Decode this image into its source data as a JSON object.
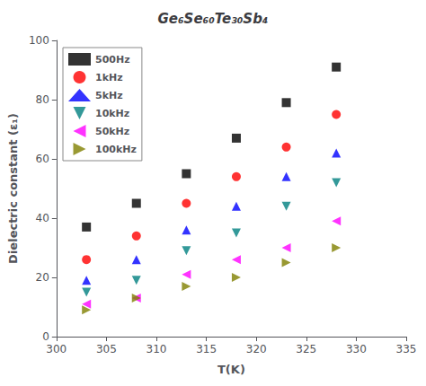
{
  "chart_data": {
    "type": "scatter",
    "title": "Ge₆Se₆₀Te₃₀Sb₄",
    "x_label": "T(K)",
    "y_label": "Dielectric constant (ε₁)",
    "xlim": [
      300,
      335
    ],
    "ylim": [
      0,
      100
    ],
    "xticks": [
      300,
      305,
      310,
      315,
      320,
      325,
      330,
      335
    ],
    "yticks": [
      0,
      20,
      40,
      60,
      80,
      100
    ],
    "grid": false,
    "legend": "upper left",
    "series": [
      {
        "name": "500Hz",
        "color": "black",
        "marker": "square",
        "x": [
          303,
          308,
          313,
          318,
          323,
          328
        ],
        "values": [
          37,
          45,
          55,
          67,
          79,
          91
        ]
      },
      {
        "name": "1kHz",
        "color": "red",
        "marker": "circle",
        "x": [
          303,
          308,
          313,
          318,
          323,
          328
        ],
        "values": [
          26,
          34,
          45,
          54,
          64,
          75
        ]
      },
      {
        "name": "5kHz",
        "color": "blue",
        "marker": "triangle_up",
        "x": [
          303,
          308,
          313,
          318,
          323,
          328
        ],
        "values": [
          19,
          26,
          36,
          44,
          54,
          62
        ]
      },
      {
        "name": "10kHz",
        "color": "#008080",
        "marker": "triangle_down",
        "x": [
          303,
          308,
          313,
          318,
          323,
          328
        ],
        "values": [
          15,
          19,
          29,
          35,
          44,
          52
        ]
      },
      {
        "name": "50kHz",
        "color": "magenta",
        "marker": "triangle_left",
        "x": [
          303,
          308,
          313,
          318,
          323,
          328
        ],
        "values": [
          11,
          13,
          21,
          26,
          30,
          39
        ]
      },
      {
        "name": "100kHz",
        "color": "#808000",
        "marker": "triangle_right",
        "x": [
          303,
          308,
          313,
          318,
          323,
          328
        ],
        "values": [
          9,
          13,
          17,
          20,
          25,
          30
        ]
      }
    ]
  }
}
